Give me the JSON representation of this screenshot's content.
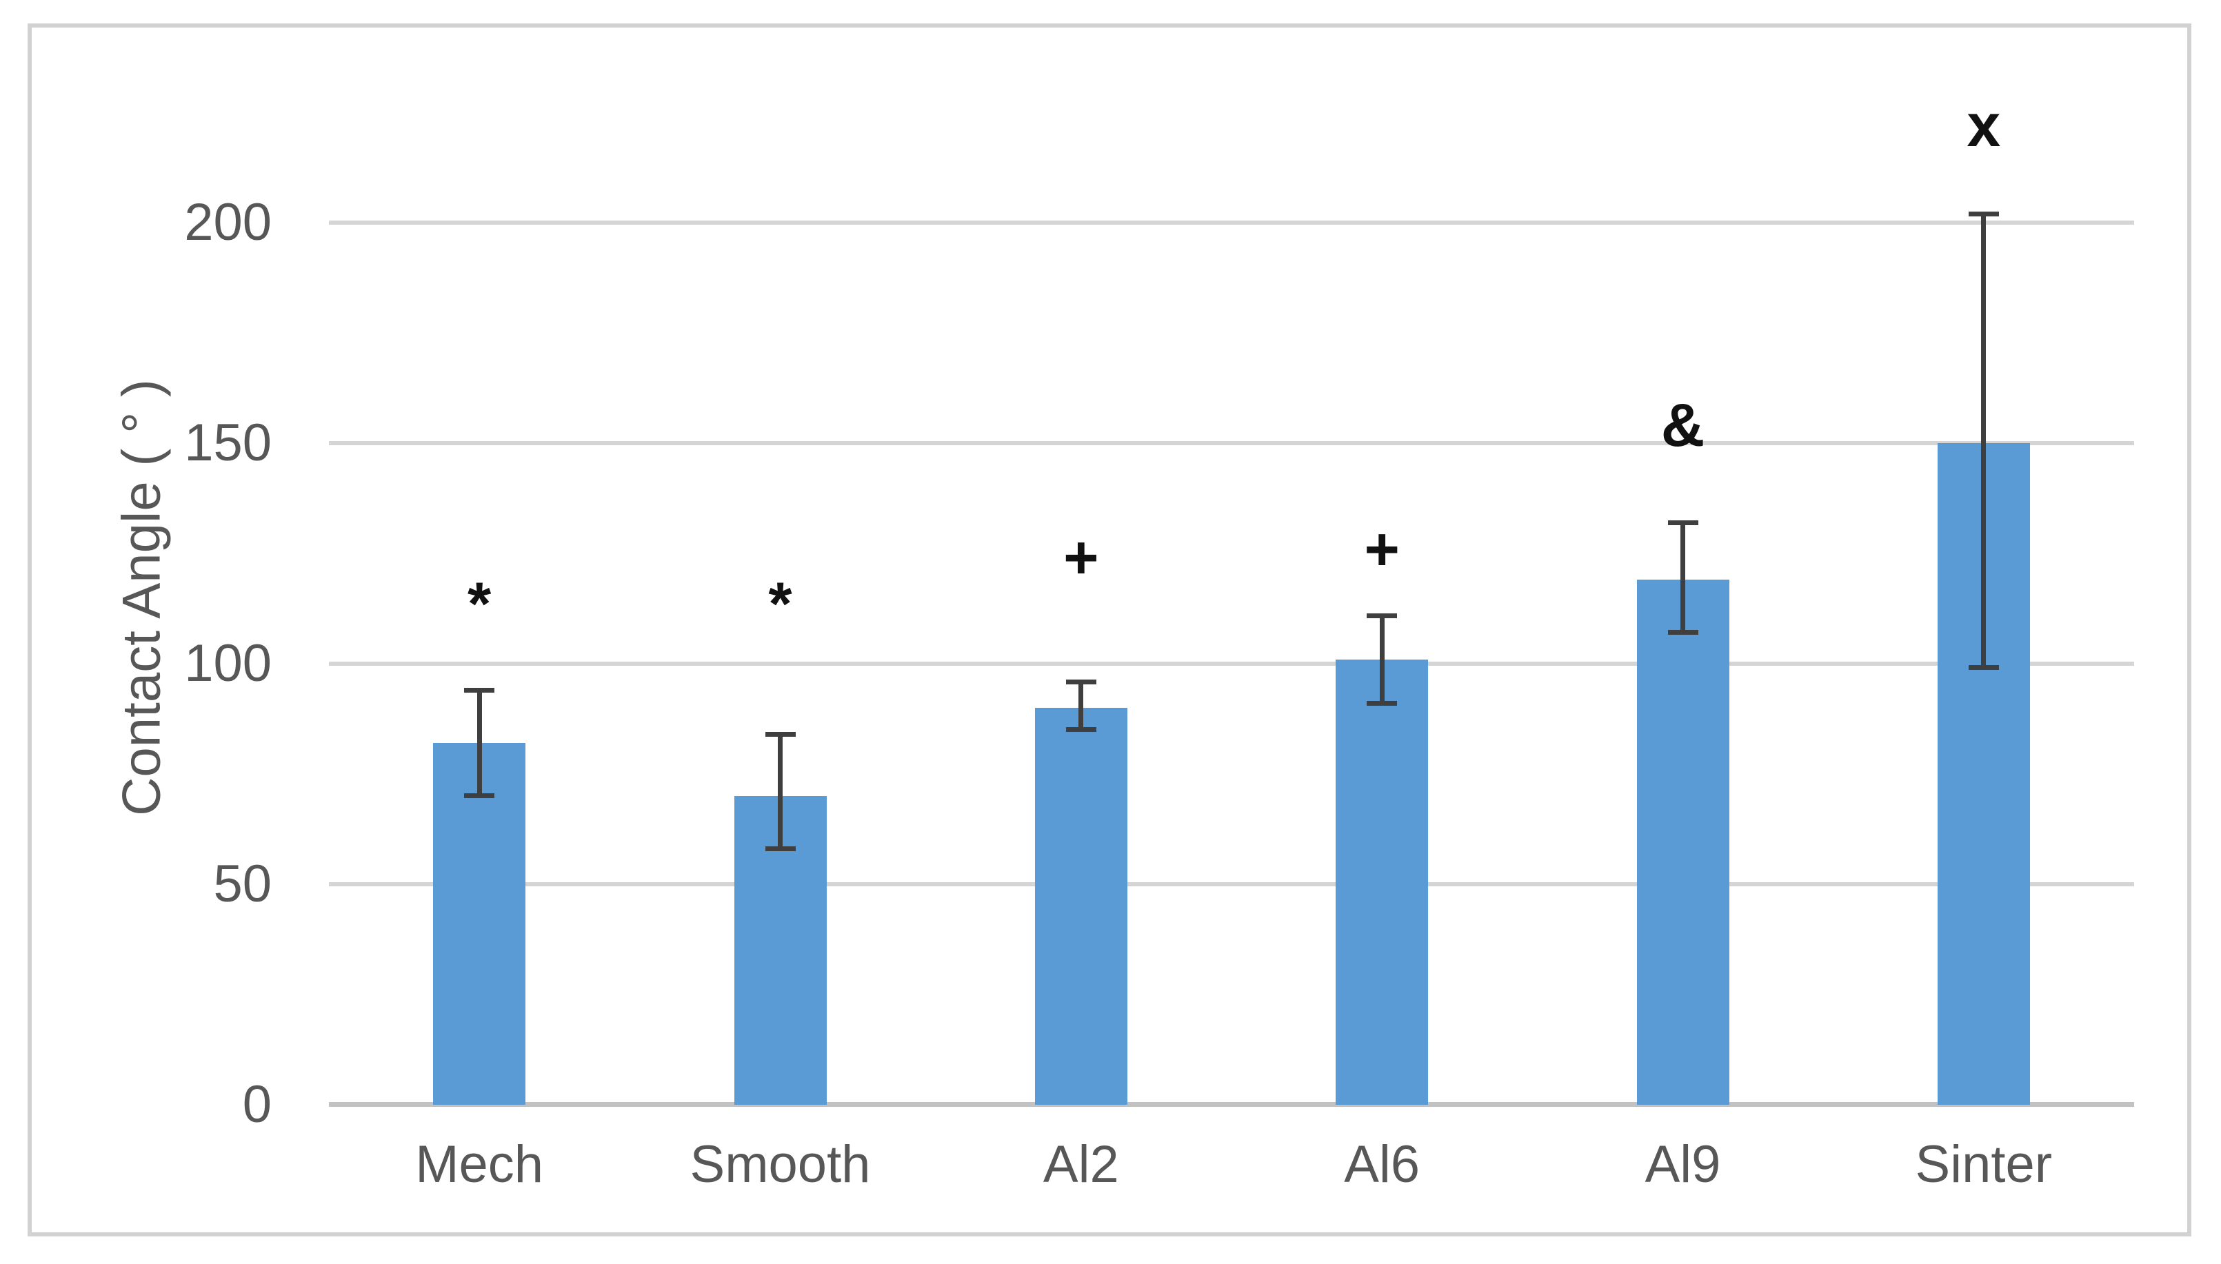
{
  "chart_data": {
    "type": "bar",
    "title": "",
    "xlabel": "",
    "ylabel": "Contact Angle ( ° )",
    "categories": [
      "Mech",
      "Smooth",
      "Al2",
      "Al6",
      "Al9",
      "Sinter"
    ],
    "values": [
      82,
      70,
      90,
      101,
      119,
      150
    ],
    "error_up": [
      12,
      14,
      6,
      10,
      13,
      52
    ],
    "error_down": [
      12,
      12,
      5,
      10,
      12,
      51
    ],
    "annotations": [
      "*",
      "*",
      "+",
      "+",
      "&",
      "x"
    ],
    "annotation_y": [
      115,
      115,
      124,
      126,
      154,
      222
    ],
    "yticks": [
      0,
      50,
      100,
      150,
      200
    ],
    "ytick_labels": [
      "0",
      "50",
      "100",
      "150",
      "200"
    ],
    "ylim": [
      0,
      230
    ],
    "grid": true,
    "legend": "none",
    "bar_width_ratio": 0.31,
    "colors": {
      "bar": "#5B9BD5",
      "error": "#3F3F3F",
      "gridline": "#D5D5D5",
      "axis": "#C2C2C2",
      "tick_text": "#575757",
      "annotation": "#111111",
      "border": "#D2D2D2"
    }
  }
}
